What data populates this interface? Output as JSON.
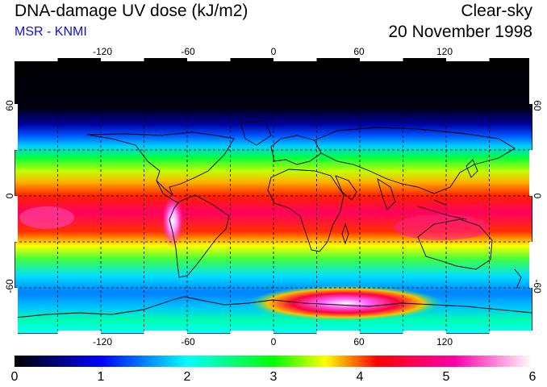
{
  "header": {
    "title": "DNA-damage UV dose (kJ/m2)",
    "source": "MSR - KNMI",
    "condition": "Clear-sky",
    "date": "20 November 1998"
  },
  "map": {
    "lon_ticks": [
      "-120",
      "-60",
      "0",
      "60",
      "120"
    ],
    "lat_ticks_left": [
      "60",
      "0",
      "-60"
    ],
    "lat_ticks_right": [
      "60",
      "0",
      "-60"
    ],
    "lon_range": [
      -180,
      180
    ],
    "lat_range": [
      -90,
      90
    ]
  },
  "colorbar": {
    "labels": [
      "0",
      "1",
      "2",
      "3",
      "4",
      "5",
      "6"
    ],
    "min": 0,
    "max": 6,
    "stops": [
      "#000000",
      "#0000ff",
      "#00ffff",
      "#00ff00",
      "#ffff00",
      "#ff0000",
      "#ff00aa",
      "#ffffff"
    ]
  }
}
